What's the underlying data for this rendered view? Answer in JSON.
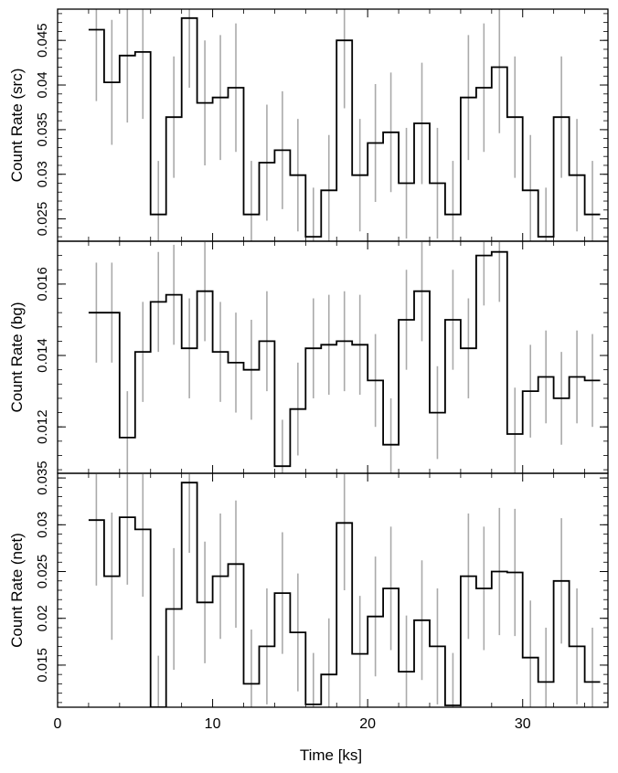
{
  "chart_data": {
    "type": "line",
    "style": "step-with-errorbars",
    "xlabel": "Time [ks]",
    "xlim": [
      0,
      35.5
    ],
    "xticks": [
      0,
      10,
      20,
      30
    ],
    "x": [
      2.5,
      3.5,
      4.5,
      5.5,
      6.5,
      7.5,
      8.5,
      9.5,
      10.5,
      11.5,
      12.5,
      13.5,
      14.5,
      15.5,
      16.5,
      17.5,
      18.5,
      19.5,
      20.5,
      21.5,
      22.5,
      23.5,
      24.5,
      25.5,
      26.5,
      27.5,
      28.5,
      29.5,
      30.5,
      31.5,
      32.5,
      33.5,
      34.5
    ],
    "x_half_width": 0.5,
    "panels": [
      {
        "ylabel": "Count Rate (src)",
        "ylim": [
          0.0225,
          0.0485
        ],
        "yticks": [
          0.025,
          0.03,
          0.035,
          0.04,
          0.045
        ],
        "tick_labels": [
          "0.025",
          "0.03",
          "0.035",
          "0.04",
          "0.045"
        ],
        "values": [
          0.0462,
          0.0403,
          0.0433,
          0.0437,
          0.0255,
          0.0364,
          0.0475,
          0.038,
          0.0386,
          0.0397,
          0.0255,
          0.0313,
          0.0327,
          0.0299,
          0.023,
          0.0282,
          0.045,
          0.0299,
          0.0335,
          0.0347,
          0.029,
          0.0357,
          0.029,
          0.0255,
          0.0386,
          0.0397,
          0.042,
          0.0364,
          0.0282,
          0.023,
          0.0364,
          0.0299,
          0.0255
        ],
        "errors": [
          0.008,
          0.007,
          0.0075,
          0.0075,
          0.006,
          0.0068,
          0.0078,
          0.007,
          0.007,
          0.0072,
          0.006,
          0.0065,
          0.0066,
          0.0063,
          0.0055,
          0.0062,
          0.0076,
          0.0063,
          0.0066,
          0.0067,
          0.0062,
          0.0068,
          0.0062,
          0.006,
          0.007,
          0.0072,
          0.0074,
          0.0068,
          0.0062,
          0.0055,
          0.0068,
          0.0063,
          0.006
        ]
      },
      {
        "ylabel": "Count Rate (bg)",
        "ylim": [
          0.0107,
          0.0172
        ],
        "yticks": [
          0.012,
          0.014,
          0.016
        ],
        "tick_labels": [
          "0.012",
          "0.014",
          "0.016"
        ],
        "values": [
          0.0152,
          0.0152,
          0.0117,
          0.0141,
          0.0155,
          0.0157,
          0.0142,
          0.0158,
          0.0141,
          0.0138,
          0.0136,
          0.0144,
          0.0109,
          0.0125,
          0.0142,
          0.0143,
          0.0144,
          0.0143,
          0.0133,
          0.0115,
          0.015,
          0.0158,
          0.0124,
          0.015,
          0.0142,
          0.0168,
          0.0169,
          0.0118,
          0.013,
          0.0134,
          0.0128,
          0.0134,
          0.0133
        ],
        "errors": [
          0.0014,
          0.0014,
          0.0013,
          0.0014,
          0.0014,
          0.0014,
          0.0014,
          0.0014,
          0.0014,
          0.0014,
          0.0014,
          0.0014,
          0.0013,
          0.0013,
          0.0014,
          0.0014,
          0.0014,
          0.0014,
          0.0013,
          0.0013,
          0.0014,
          0.0014,
          0.0013,
          0.0014,
          0.0014,
          0.0014,
          0.0014,
          0.0013,
          0.0013,
          0.0013,
          0.0013,
          0.0013,
          0.0013
        ]
      },
      {
        "ylabel": "Count Rate (net)",
        "ylim": [
          0.0105,
          0.0355
        ],
        "yticks": [
          0.015,
          0.02,
          0.025,
          0.03,
          0.035
        ],
        "tick_labels": [
          "0.015",
          "0.02",
          "0.025",
          "0.03",
          "0.035"
        ],
        "values": [
          0.0305,
          0.0245,
          0.0308,
          0.0295,
          0.0105,
          0.021,
          0.0345,
          0.0217,
          0.0245,
          0.0258,
          0.013,
          0.017,
          0.0227,
          0.0185,
          0.0108,
          0.014,
          0.0302,
          0.0162,
          0.0202,
          0.0232,
          0.0143,
          0.0198,
          0.017,
          0.0107,
          0.0245,
          0.0232,
          0.025,
          0.0249,
          0.0158,
          0.0132,
          0.024,
          0.017,
          0.0132
        ],
        "errors": [
          0.007,
          0.0068,
          0.0072,
          0.0072,
          0.0055,
          0.0065,
          0.0075,
          0.0065,
          0.0067,
          0.0068,
          0.0058,
          0.0062,
          0.0065,
          0.0063,
          0.0055,
          0.006,
          0.0072,
          0.0062,
          0.0064,
          0.0066,
          0.006,
          0.0064,
          0.0062,
          0.0056,
          0.0067,
          0.0066,
          0.0068,
          0.0068,
          0.0061,
          0.0058,
          0.0067,
          0.0062,
          0.0058
        ]
      }
    ],
    "colors": {
      "line": "#000000",
      "errorbar": "#aaaaaa",
      "axis": "#000000"
    }
  }
}
